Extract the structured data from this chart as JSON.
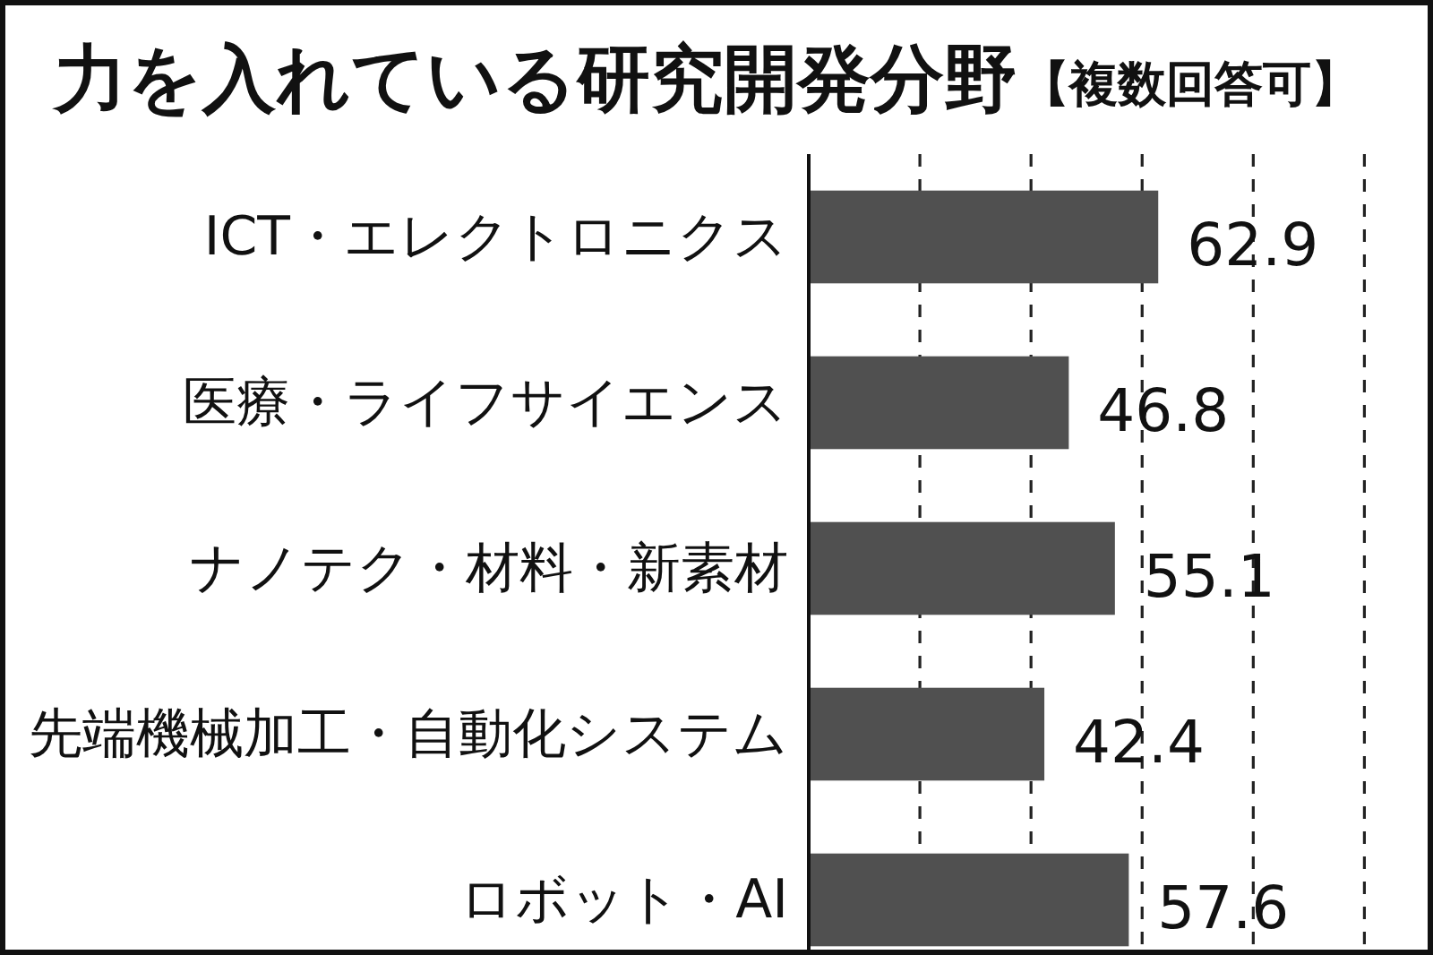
{
  "chart_data": {
    "type": "bar",
    "orientation": "horizontal",
    "title": "力を入れている研究開発分野",
    "subtitle": "【複数回答可】",
    "categories": [
      "ICT・エレクトロニクス",
      "医療・ライフサイエンス",
      "ナノテク・材料・新素材",
      "先端機械加工・自動化システム",
      "ロボット・AI"
    ],
    "values": [
      62.9,
      46.8,
      55.1,
      42.4,
      57.6
    ],
    "color": "#505050",
    "data_labels": true,
    "xticks": [
      {
        "value": 20,
        "label": null
      },
      {
        "value": 40,
        "label": null
      },
      {
        "value": 60,
        "label": null
      },
      {
        "value": 80,
        "label": null
      },
      {
        "value": 100,
        "label": null
      }
    ],
    "grid": "x",
    "tick_labels": "y"
  }
}
